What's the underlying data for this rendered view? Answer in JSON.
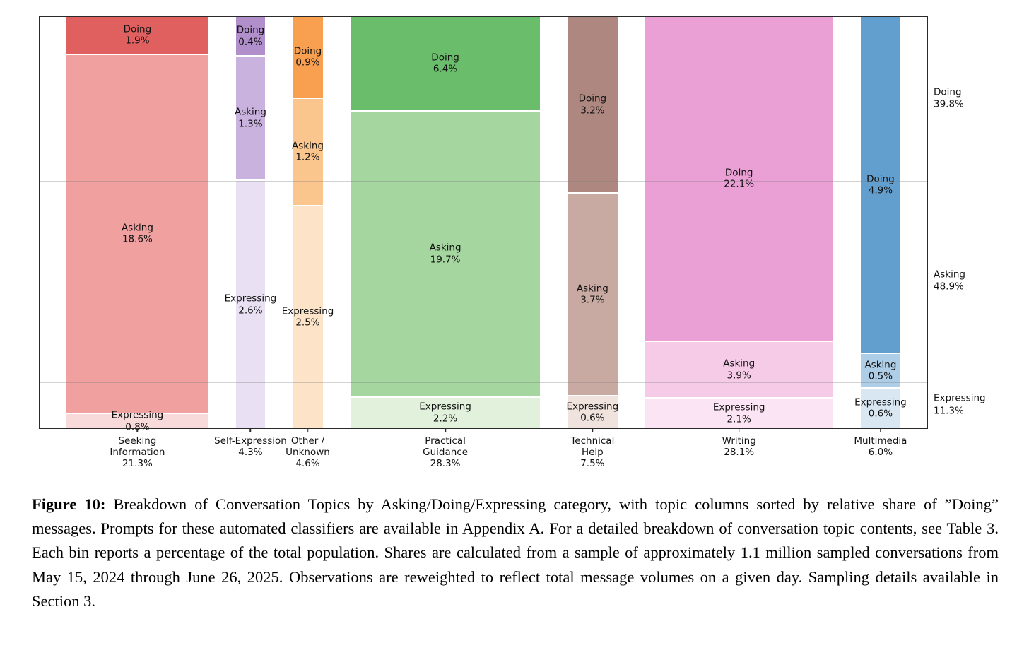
{
  "figure": {
    "caption_label": "Figure 10:",
    "caption_text": "Breakdown of Conversation Topics by Asking/Doing/Expressing category, with topic columns sorted by relative share of ”Doing” messages. Prompts for these automated classifiers are available in Appendix A. For a detailed breakdown of conversation topic contents, see Table 3. Each bin reports a percentage of the total population. Shares are calculated from a sample of approximately 1.1 million sampled conversations from May 15, 2024 through June 26, 2025. Observations are reweighted to reflect total message volumes on a given day. Sampling details available in Section 3."
  },
  "colors": {
    "axis": "#2a2a2a",
    "grid": "#cccccc",
    "text": "#111111",
    "separator": "#ffffff"
  },
  "chart_data": {
    "type": "mosaic",
    "title": "",
    "note": "Column widths proportional to topic share of total; segment heights proportional to share within column. Each bin reports a percentage of the total population.",
    "gridlines_at_cumulative_pct": [
      39.8,
      88.7
    ],
    "legend_position": "none",
    "row_totals": [
      {
        "name": "Doing",
        "share": 39.8,
        "label": "39.8%"
      },
      {
        "name": "Asking",
        "share": 48.9,
        "label": "48.9%"
      },
      {
        "name": "Expressing",
        "share": 11.3,
        "label": "11.3%"
      }
    ],
    "columns": [
      {
        "name": "Seeking Information",
        "label_lines": [
          "Seeking",
          "Information"
        ],
        "total": 21.3,
        "total_label": "21.3%",
        "segments": [
          {
            "name": "Doing",
            "value": 1.9,
            "label": "1.9%",
            "color": "#e06060"
          },
          {
            "name": "Asking",
            "value": 18.6,
            "label": "18.6%",
            "color": "#f0a09e"
          },
          {
            "name": "Expressing",
            "value": 0.8,
            "label": "0.8%",
            "color": "#f9dada"
          }
        ]
      },
      {
        "name": "Self-Expression",
        "label_lines": [
          "Self-Expression"
        ],
        "total": 4.3,
        "total_label": "4.3%",
        "segments": [
          {
            "name": "Doing",
            "value": 0.4,
            "label": "0.4%",
            "color": "#b08fcb"
          },
          {
            "name": "Asking",
            "value": 1.3,
            "label": "1.3%",
            "color": "#c9b2dd"
          },
          {
            "name": "Expressing",
            "value": 2.6,
            "label": "2.6%",
            "color": "#e9e1f3"
          }
        ]
      },
      {
        "name": "Other / Unknown",
        "label_lines": [
          "Other /",
          "Unknown"
        ],
        "total": 4.6,
        "total_label": "4.6%",
        "segments": [
          {
            "name": "Doing",
            "value": 0.9,
            "label": "0.9%",
            "color": "#f8a050"
          },
          {
            "name": "Asking",
            "value": 1.2,
            "label": "1.2%",
            "color": "#fbc68e"
          },
          {
            "name": "Expressing",
            "value": 2.5,
            "label": "2.5%",
            "color": "#fde4c9"
          }
        ]
      },
      {
        "name": "Practical Guidance",
        "label_lines": [
          "Practical",
          "Guidance"
        ],
        "total": 28.3,
        "total_label": "28.3%",
        "segments": [
          {
            "name": "Doing",
            "value": 6.4,
            "label": "6.4%",
            "color": "#6abd6a"
          },
          {
            "name": "Asking",
            "value": 19.7,
            "label": "19.7%",
            "color": "#a5d6a0"
          },
          {
            "name": "Expressing",
            "value": 2.2,
            "label": "2.2%",
            "color": "#e1f1dc"
          }
        ]
      },
      {
        "name": "Technical Help",
        "label_lines": [
          "Technical",
          "Help"
        ],
        "total": 7.5,
        "total_label": "7.5%",
        "segments": [
          {
            "name": "Doing",
            "value": 3.2,
            "label": "3.2%",
            "color": "#ad8780"
          },
          {
            "name": "Asking",
            "value": 3.7,
            "label": "3.7%",
            "color": "#c9aaa3"
          },
          {
            "name": "Expressing",
            "value": 0.6,
            "label": "0.6%",
            "color": "#f0e3de"
          }
        ]
      },
      {
        "name": "Writing",
        "label_lines": [
          "Writing"
        ],
        "total": 28.1,
        "total_label": "28.1%",
        "segments": [
          {
            "name": "Doing",
            "value": 22.1,
            "label": "22.1%",
            "color": "#ea9fd5"
          },
          {
            "name": "Asking",
            "value": 3.9,
            "label": "3.9%",
            "color": "#f6cbe8"
          },
          {
            "name": "Expressing",
            "value": 2.1,
            "label": "2.1%",
            "color": "#fbe4f3"
          }
        ]
      },
      {
        "name": "Multimedia",
        "label_lines": [
          "Multimedia"
        ],
        "total": 6.0,
        "total_label": "6.0%",
        "segments": [
          {
            "name": "Doing",
            "value": 4.9,
            "label": "4.9%",
            "color": "#629fce"
          },
          {
            "name": "Asking",
            "value": 0.5,
            "label": "0.5%",
            "color": "#aecde6"
          },
          {
            "name": "Expressing",
            "value": 0.6,
            "label": "0.6%",
            "color": "#d9e7f3"
          }
        ]
      }
    ],
    "layout": {
      "pad_pct": 3.0,
      "gap_pct": 3.1
    }
  }
}
